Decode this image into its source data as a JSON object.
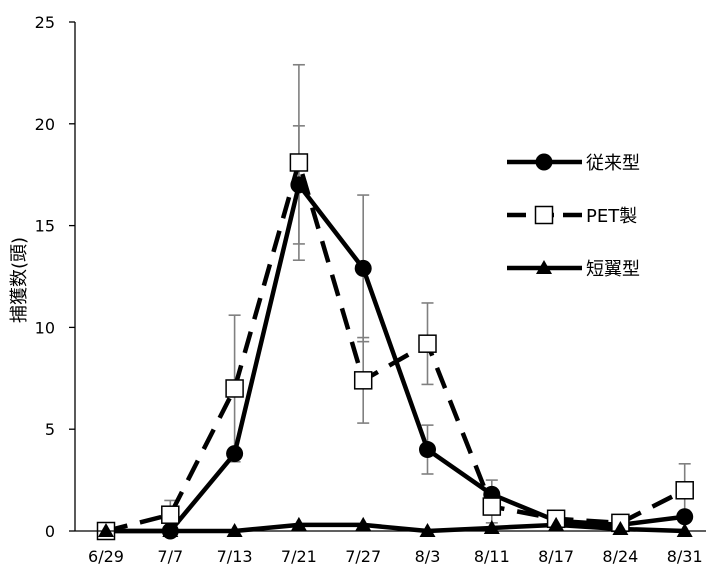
{
  "chart_data": {
    "type": "line",
    "title": "",
    "xlabel": "",
    "ylabel": "捕獲数(頭)",
    "ylim": [
      0,
      25
    ],
    "yticks": [
      0,
      5,
      10,
      15,
      20,
      25
    ],
    "categories": [
      "6/29",
      "7/7",
      "7/13",
      "7/21",
      "7/27",
      "8/3",
      "8/11",
      "8/17",
      "8/24",
      "8/31"
    ],
    "grid": false,
    "legend_position": "right",
    "series": [
      {
        "name": "従来型",
        "line_style": "solid",
        "marker": "filled-circle",
        "values": [
          0,
          0,
          3.8,
          17.0,
          12.9,
          4.0,
          1.8,
          0.5,
          0.3,
          0.7
        ],
        "error": [
          null,
          null,
          null,
          2.9,
          3.6,
          1.2,
          0.7,
          null,
          null,
          null
        ]
      },
      {
        "name": "PET製",
        "line_style": "dashed",
        "marker": "open-square",
        "values": [
          0,
          0.8,
          7.0,
          18.1,
          7.4,
          9.2,
          1.2,
          0.6,
          0.4,
          2.0
        ],
        "error": [
          null,
          0.7,
          3.6,
          4.8,
          2.1,
          2.0,
          0.8,
          null,
          null,
          1.3
        ]
      },
      {
        "name": "短翼型",
        "line_style": "solid",
        "marker": "filled-triangle",
        "values": [
          0,
          0,
          0,
          0.3,
          0.3,
          0,
          0.15,
          0.3,
          0.1,
          0
        ],
        "error": [
          null,
          null,
          null,
          null,
          null,
          null,
          null,
          null,
          null,
          null
        ]
      }
    ],
    "colors": {
      "series": "#000000",
      "error_bar": "#808080"
    }
  }
}
